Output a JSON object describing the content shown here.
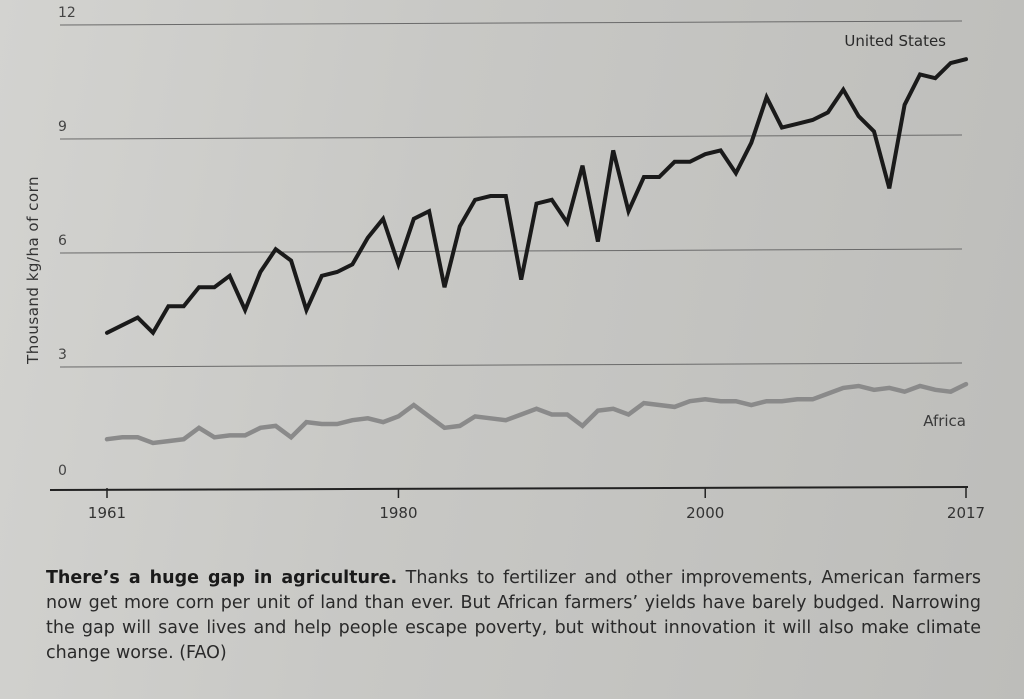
{
  "chart_data": {
    "type": "line",
    "title": "",
    "xlabel": "",
    "ylabel": "Thousand kg/ha of corn",
    "xlim": [
      1961,
      2017
    ],
    "ylim": [
      0,
      12
    ],
    "yticks": [
      0,
      3,
      6,
      9,
      12
    ],
    "xticks": [
      1961,
      1980,
      2000,
      2017
    ],
    "grid": true,
    "x_start": 1961,
    "series": [
      {
        "name": "United States",
        "color": "#1a1a1a",
        "values": [
          3.9,
          4.1,
          4.3,
          3.9,
          4.6,
          4.6,
          5.1,
          5.1,
          5.4,
          4.5,
          5.5,
          6.1,
          5.8,
          4.5,
          5.4,
          5.5,
          5.7,
          6.4,
          6.9,
          5.7,
          6.9,
          7.1,
          5.1,
          6.7,
          7.4,
          7.5,
          7.5,
          5.3,
          7.3,
          7.4,
          6.8,
          8.3,
          6.3,
          8.7,
          7.1,
          8.0,
          8.0,
          8.4,
          8.4,
          8.6,
          8.7,
          8.1,
          8.9,
          10.1,
          9.3,
          9.4,
          9.5,
          9.7,
          10.3,
          9.6,
          9.2,
          7.7,
          9.9,
          10.7,
          10.6,
          11.0,
          11.1
        ]
      },
      {
        "name": "Africa",
        "color": "#8a8a8a",
        "values": [
          1.1,
          1.15,
          1.15,
          1.0,
          1.05,
          1.1,
          1.4,
          1.15,
          1.2,
          1.2,
          1.4,
          1.45,
          1.15,
          1.55,
          1.5,
          1.5,
          1.6,
          1.65,
          1.55,
          1.7,
          2.0,
          1.7,
          1.4,
          1.45,
          1.7,
          1.65,
          1.6,
          1.75,
          1.9,
          1.75,
          1.75,
          1.45,
          1.85,
          1.9,
          1.75,
          2.05,
          2.0,
          1.95,
          2.1,
          2.15,
          2.1,
          2.1,
          2.0,
          2.1,
          2.1,
          2.15,
          2.15,
          2.3,
          2.45,
          2.5,
          2.4,
          2.45,
          2.35,
          2.5,
          2.4,
          2.35,
          2.55
        ]
      }
    ]
  },
  "caption": {
    "bold": "There’s a huge gap in agriculture.",
    "text": " Thanks to fertilizer and other improvements, American farmers now get more corn per unit of land than ever. But African farmers’ yields have barely budged. Narrowing the gap will save lives and help people escape poverty, but without innovation it will also make climate change worse. (FAO)"
  }
}
